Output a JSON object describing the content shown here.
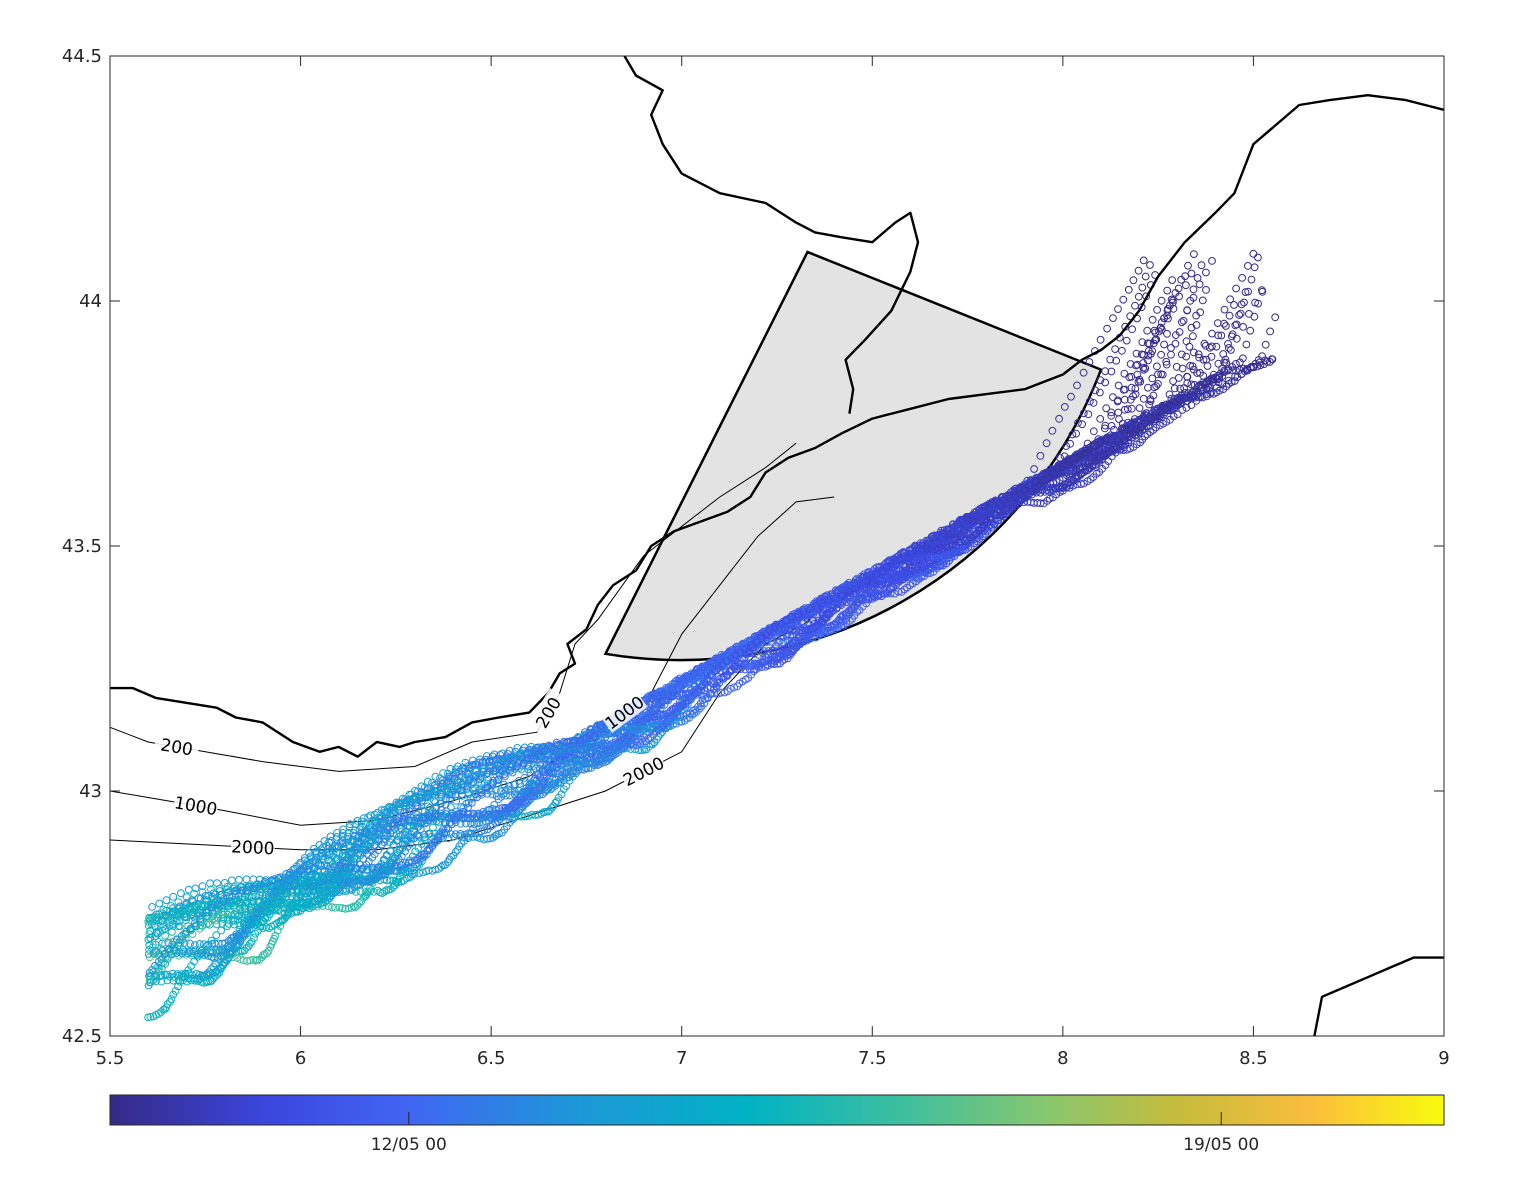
{
  "chart_data": {
    "type": "scatter",
    "title": "",
    "xlabel": "",
    "ylabel": "",
    "xlim": [
      5.5,
      9
    ],
    "ylim": [
      42.5,
      44.5
    ],
    "xticks": [
      "5.5",
      "6",
      "6.5",
      "7",
      "7.5",
      "8",
      "8.5",
      "9"
    ],
    "yticks": [
      "42.5",
      "43",
      "43.5",
      "44",
      "44.5"
    ],
    "grid": false,
    "colorbar": {
      "orientation": "horizontal",
      "colormap": "parula",
      "ticks": [
        "12/05 00",
        "19/05 00"
      ],
      "tick_fractions": [
        0.224,
        0.833
      ]
    },
    "sector": {
      "apex": [
        7.33,
        44.1
      ],
      "radius_deg": 1.0,
      "vertices": [
        [
          6.8,
          43.28
        ],
        [
          8.1,
          43.86
        ]
      ],
      "fill": "#e3e3e3"
    },
    "coastline": [
      [
        [
          5.5,
          43.21
        ],
        [
          5.56,
          43.21
        ],
        [
          5.62,
          43.19
        ],
        [
          5.7,
          43.18
        ],
        [
          5.78,
          43.17
        ],
        [
          5.83,
          43.15
        ],
        [
          5.9,
          43.14
        ],
        [
          5.98,
          43.1
        ],
        [
          6.05,
          43.08
        ],
        [
          6.1,
          43.09
        ],
        [
          6.15,
          43.07
        ],
        [
          6.2,
          43.1
        ],
        [
          6.26,
          43.09
        ],
        [
          6.3,
          43.1
        ],
        [
          6.38,
          43.11
        ],
        [
          6.45,
          43.14
        ],
        [
          6.52,
          43.15
        ],
        [
          6.6,
          43.16
        ],
        [
          6.65,
          43.2
        ],
        [
          6.68,
          43.24
        ],
        [
          6.72,
          43.26
        ],
        [
          6.7,
          43.3
        ],
        [
          6.75,
          43.33
        ],
        [
          6.78,
          43.38
        ],
        [
          6.82,
          43.42
        ],
        [
          6.88,
          43.45
        ],
        [
          6.92,
          43.5
        ],
        [
          6.98,
          43.53
        ],
        [
          7.05,
          43.55
        ],
        [
          7.12,
          43.57
        ],
        [
          7.18,
          43.6
        ],
        [
          7.22,
          43.65
        ],
        [
          7.28,
          43.68
        ],
        [
          7.35,
          43.7
        ],
        [
          7.42,
          43.73
        ],
        [
          7.5,
          43.76
        ],
        [
          7.6,
          43.78
        ],
        [
          7.7,
          43.8
        ],
        [
          7.8,
          43.81
        ],
        [
          7.9,
          43.82
        ],
        [
          8.0,
          43.85
        ],
        [
          8.05,
          43.88
        ],
        [
          8.1,
          43.9
        ],
        [
          8.15,
          43.93
        ],
        [
          8.2,
          43.98
        ],
        [
          8.25,
          44.05
        ],
        [
          8.32,
          44.12
        ],
        [
          8.4,
          44.18
        ],
        [
          8.45,
          44.22
        ],
        [
          8.48,
          44.28
        ],
        [
          8.5,
          44.32
        ],
        [
          8.56,
          44.36
        ],
        [
          8.62,
          44.4
        ],
        [
          8.7,
          44.41
        ],
        [
          8.8,
          44.42
        ],
        [
          8.9,
          44.41
        ],
        [
          9.0,
          44.39
        ]
      ],
      [
        [
          7.44,
          43.77
        ],
        [
          7.45,
          43.82
        ],
        [
          7.43,
          43.88
        ],
        [
          7.48,
          43.92
        ],
        [
          7.55,
          43.98
        ],
        [
          7.6,
          44.06
        ],
        [
          7.62,
          44.12
        ],
        [
          7.6,
          44.18
        ],
        [
          7.56,
          44.16
        ],
        [
          7.5,
          44.12
        ],
        [
          7.42,
          44.13
        ],
        [
          7.35,
          44.14
        ],
        [
          7.3,
          44.16
        ],
        [
          7.22,
          44.2
        ],
        [
          7.1,
          44.22
        ],
        [
          7.0,
          44.26
        ],
        [
          6.95,
          44.32
        ],
        [
          6.92,
          44.38
        ],
        [
          6.95,
          44.43
        ],
        [
          6.88,
          44.46
        ],
        [
          6.85,
          44.5
        ]
      ],
      [
        [
          8.66,
          42.5
        ],
        [
          8.68,
          42.58
        ],
        [
          8.74,
          42.6
        ],
        [
          8.8,
          42.62
        ],
        [
          8.86,
          42.64
        ],
        [
          8.92,
          42.66
        ],
        [
          9.0,
          42.66
        ]
      ]
    ],
    "bathymetry_contours": [
      {
        "label": "200",
        "points": [
          [
            5.5,
            43.13
          ],
          [
            5.6,
            43.1
          ],
          [
            5.75,
            43.08
          ],
          [
            5.9,
            43.06
          ],
          [
            6.1,
            43.04
          ],
          [
            6.3,
            43.05
          ],
          [
            6.45,
            43.1
          ],
          [
            6.62,
            43.12
          ],
          [
            6.68,
            43.2
          ],
          [
            6.72,
            43.3
          ],
          [
            6.78,
            43.35
          ],
          [
            6.9,
            43.48
          ],
          [
            7.1,
            43.6
          ],
          [
            7.22,
            43.66
          ],
          [
            7.3,
            43.71
          ]
        ]
      },
      {
        "label": "1000",
        "points": [
          [
            5.5,
            43.0
          ],
          [
            5.65,
            42.98
          ],
          [
            5.8,
            42.96
          ],
          [
            6.0,
            42.93
          ],
          [
            6.2,
            42.94
          ],
          [
            6.4,
            42.98
          ],
          [
            6.6,
            43.03
          ],
          [
            6.78,
            43.12
          ],
          [
            6.92,
            43.2
          ],
          [
            7.0,
            43.32
          ],
          [
            7.1,
            43.42
          ],
          [
            7.2,
            43.52
          ],
          [
            7.3,
            43.59
          ],
          [
            7.4,
            43.6
          ]
        ]
      },
      {
        "label": "2000",
        "points": [
          [
            5.5,
            42.9
          ],
          [
            5.75,
            42.89
          ],
          [
            6.0,
            42.88
          ],
          [
            6.2,
            42.88
          ],
          [
            6.4,
            42.9
          ],
          [
            6.6,
            42.95
          ],
          [
            6.8,
            43.0
          ],
          [
            7.0,
            43.08
          ],
          [
            7.1,
            43.2
          ],
          [
            7.22,
            43.3
          ],
          [
            7.32,
            43.34
          ],
          [
            7.38,
            43.38
          ]
        ]
      }
    ],
    "trajectory_count": 30,
    "trajectory_start": [
      8.3,
      43.95
    ]
  }
}
